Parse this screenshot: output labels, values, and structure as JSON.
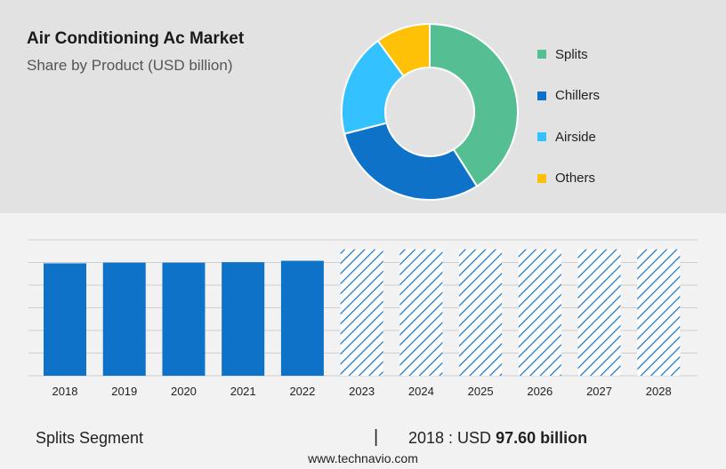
{
  "header": {
    "title": "Air Conditioning Ac Market",
    "subtitle": "Share by Product (USD billion)"
  },
  "footer": {
    "segment_label": "Splits Segment",
    "separator": "|",
    "year_prefix": "2018 : USD",
    "value_text": "97.60 billion",
    "url": "www.technavio.com"
  },
  "chart_data": [
    {
      "type": "pie",
      "variant": "donut",
      "title": "Share by Product (USD billion)",
      "labels": [
        "Splits",
        "Chillers",
        "Airside",
        "Others"
      ],
      "values": [
        41,
        30,
        19,
        10
      ],
      "colors": [
        "#55bf93",
        "#0f72c9",
        "#33c2ff",
        "#fec107"
      ],
      "legend_position": "right"
    },
    {
      "type": "bar",
      "categories": [
        "2018",
        "2019",
        "2020",
        "2021",
        "2022",
        "2023",
        "2024",
        "2025",
        "2026",
        "2027",
        "2028"
      ],
      "values": [
        97.6,
        98.2,
        98.2,
        98.6,
        99.8,
        null,
        null,
        null,
        null,
        null,
        null
      ],
      "forecast_categories": [
        "2023",
        "2024",
        "2025",
        "2026",
        "2027",
        "2028"
      ],
      "bar_color": "#0f72c9",
      "forecast_style": "hatched",
      "ylim": [
        0,
        118
      ],
      "grid": true
    }
  ]
}
